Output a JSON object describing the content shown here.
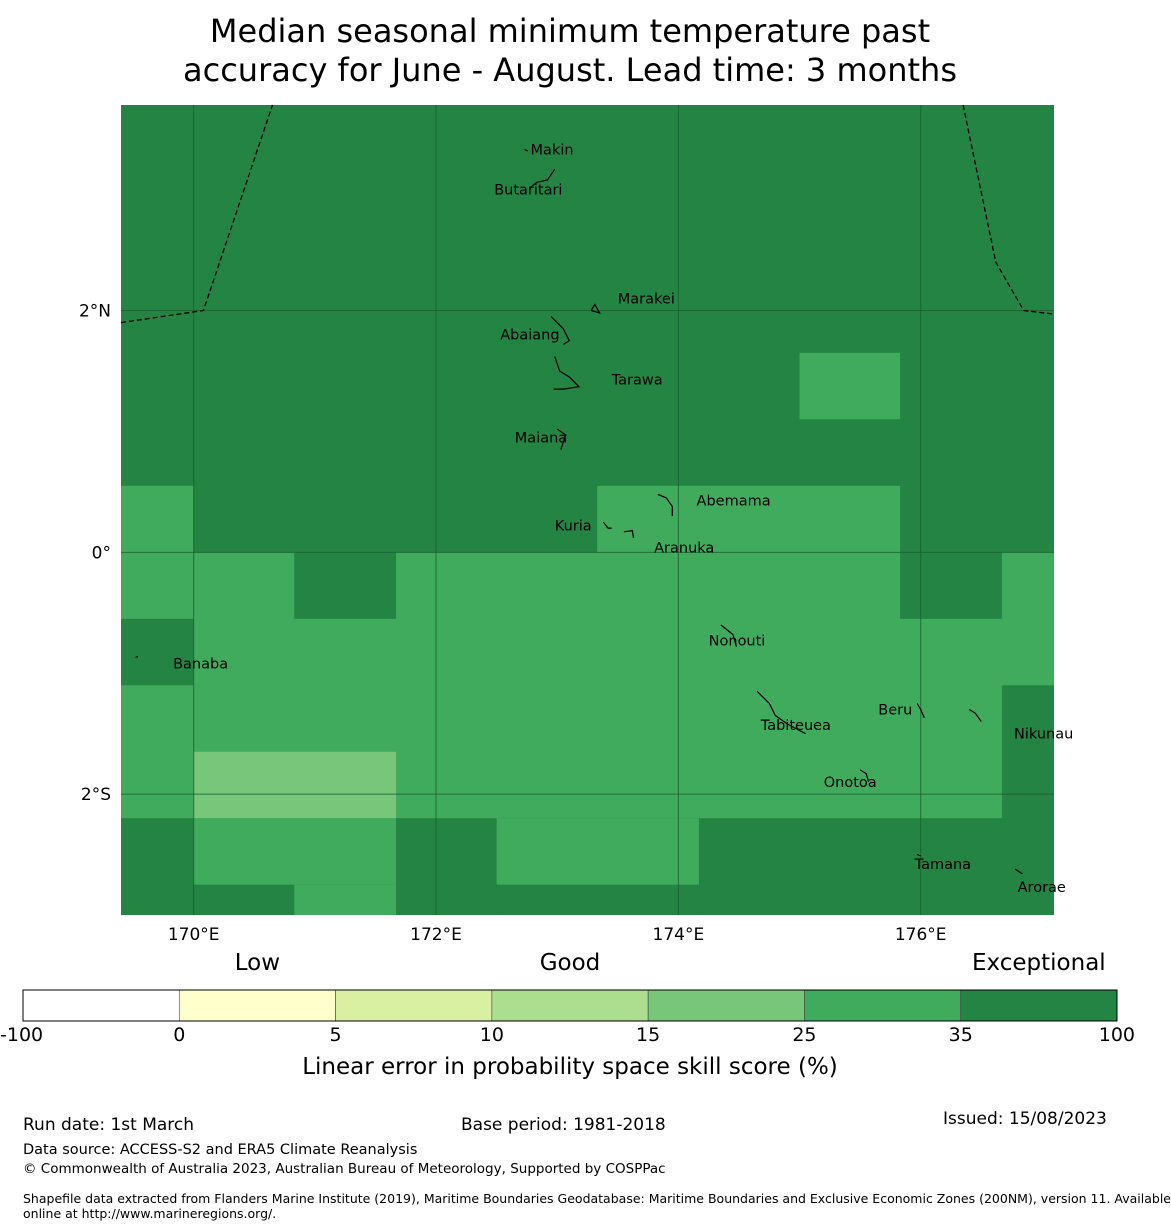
{
  "title": {
    "line1": "Median seasonal minimum temperature past",
    "line2": "accuracy for June - August. Lead time: 3 months"
  },
  "map": {
    "lon_range": [
      169.4,
      177.1
    ],
    "lat_range": [
      -3.0,
      3.7
    ],
    "lon_ticks": [
      {
        "value": 170,
        "label": "170°E"
      },
      {
        "value": 172,
        "label": "172°E"
      },
      {
        "value": 174,
        "label": "174°E"
      },
      {
        "value": 176,
        "label": "176°E"
      }
    ],
    "lat_ticks": [
      {
        "value": 2,
        "label": "2°N"
      },
      {
        "value": 0,
        "label": "0°"
      },
      {
        "value": -2,
        "label": "2°S"
      }
    ],
    "background_category": 6,
    "skill_cells": [
      {
        "lon": [
          169.4,
          170.0
        ],
        "lat": [
          0.0,
          0.55
        ],
        "category": 5
      },
      {
        "lon": [
          173.33,
          175.83
        ],
        "lat": [
          0.0,
          0.55
        ],
        "category": 5
      },
      {
        "lon": [
          175.0,
          175.83
        ],
        "lat": [
          1.1,
          1.65
        ],
        "category": 5
      },
      {
        "lon": [
          169.4,
          177.1
        ],
        "lat": [
          -2.2,
          0.0
        ],
        "category": 5
      },
      {
        "lon": [
          170.83,
          171.67
        ],
        "lat": [
          -0.55,
          0.0
        ],
        "category": 6
      },
      {
        "lon": [
          175.83,
          176.67
        ],
        "lat": [
          -0.55,
          0.0
        ],
        "category": 6
      },
      {
        "lon": [
          169.4,
          170.0
        ],
        "lat": [
          -1.1,
          -0.55
        ],
        "category": 6
      },
      {
        "lon": [
          176.67,
          177.1
        ],
        "lat": [
          -2.2,
          -1.1
        ],
        "category": 6
      },
      {
        "lon": [
          170.0,
          171.67
        ],
        "lat": [
          -2.2,
          -1.65
        ],
        "category": 4
      },
      {
        "lon": [
          169.4,
          170.0
        ],
        "lat": [
          -3.0,
          -2.2
        ],
        "category": 6
      },
      {
        "lon": [
          170.0,
          171.67
        ],
        "lat": [
          -2.75,
          -2.2
        ],
        "category": 5
      },
      {
        "lon": [
          170.0,
          170.83
        ],
        "lat": [
          -3.0,
          -2.75
        ],
        "category": 6
      },
      {
        "lon": [
          170.83,
          171.67
        ],
        "lat": [
          -3.0,
          -2.75
        ],
        "category": 5
      },
      {
        "lon": [
          171.67,
          172.5
        ],
        "lat": [
          -3.0,
          -2.2
        ],
        "category": 6
      },
      {
        "lon": [
          172.5,
          174.17
        ],
        "lat": [
          -2.75,
          -2.2
        ],
        "category": 5
      },
      {
        "lon": [
          172.5,
          174.17
        ],
        "lat": [
          -3.0,
          -2.75
        ],
        "category": 6
      },
      {
        "lon": [
          174.17,
          177.1
        ],
        "lat": [
          -3.0,
          -2.2
        ],
        "category": 6
      }
    ],
    "eez_boundaries": [
      [
        [
          169.4,
          1.9
        ],
        [
          170.08,
          2.0
        ],
        [
          170.65,
          3.7
        ]
      ],
      [
        [
          176.35,
          3.7
        ],
        [
          176.62,
          2.4
        ],
        [
          176.85,
          2.0
        ],
        [
          177.1,
          1.97
        ]
      ]
    ],
    "islands": [
      {
        "name": "Makin",
        "lon": 172.78,
        "lat": 3.32,
        "label_lon": 172.78,
        "label_lat": 3.33,
        "shape": [
          [
            172.73,
            3.33
          ],
          [
            172.76,
            3.32
          ]
        ]
      },
      {
        "name": "Butaritari",
        "lon": 172.9,
        "lat": 3.05,
        "label_lon": 172.48,
        "label_lat": 3.0,
        "shape": [
          [
            172.78,
            3.02
          ],
          [
            172.83,
            3.06
          ],
          [
            172.92,
            3.08
          ],
          [
            172.98,
            3.17
          ]
        ]
      },
      {
        "name": "Marakei",
        "lon": 173.33,
        "lat": 2.0,
        "label_lon": 173.5,
        "label_lat": 2.1,
        "shape": [
          [
            173.28,
            2.0
          ],
          [
            173.31,
            2.05
          ],
          [
            173.35,
            1.98
          ],
          [
            173.28,
            2.0
          ]
        ]
      },
      {
        "name": "Abaiang",
        "lon": 173.05,
        "lat": 1.8,
        "label_lon": 172.53,
        "label_lat": 1.8,
        "shape": [
          [
            172.95,
            1.95
          ],
          [
            173.05,
            1.85
          ],
          [
            173.1,
            1.75
          ],
          [
            173.05,
            1.72
          ]
        ]
      },
      {
        "name": "Tarawa",
        "lon": 173.1,
        "lat": 1.4,
        "label_lon": 173.45,
        "label_lat": 1.43,
        "shape": [
          [
            172.98,
            1.62
          ],
          [
            173.02,
            1.5
          ],
          [
            173.1,
            1.45
          ],
          [
            173.18,
            1.37
          ],
          [
            173.05,
            1.35
          ],
          [
            172.97,
            1.35
          ]
        ]
      },
      {
        "name": "Maiana",
        "lon": 173.05,
        "lat": 0.95,
        "label_lon": 172.65,
        "label_lat": 0.95,
        "shape": [
          [
            173.0,
            1.02
          ],
          [
            173.07,
            0.97
          ],
          [
            173.03,
            0.85
          ]
        ]
      },
      {
        "name": "Abemama",
        "lon": 173.9,
        "lat": 0.42,
        "label_lon": 174.15,
        "label_lat": 0.43,
        "shape": [
          [
            173.83,
            0.48
          ],
          [
            173.9,
            0.45
          ],
          [
            173.95,
            0.38
          ],
          [
            173.95,
            0.3
          ]
        ]
      },
      {
        "name": "Kuria",
        "lon": 173.4,
        "lat": 0.22,
        "label_lon": 172.98,
        "label_lat": 0.22,
        "shape": [
          [
            173.38,
            0.25
          ],
          [
            173.42,
            0.2
          ],
          [
            173.45,
            0.2
          ]
        ]
      },
      {
        "name": "Aranuka",
        "lon": 173.6,
        "lat": 0.16,
        "label_lon": 173.8,
        "label_lat": 0.04,
        "shape": [
          [
            173.55,
            0.17
          ],
          [
            173.62,
            0.18
          ],
          [
            173.63,
            0.12
          ]
        ]
      },
      {
        "name": "Nonouti",
        "lon": 174.4,
        "lat": -0.67,
        "label_lon": 174.25,
        "label_lat": -0.73,
        "shape": [
          [
            174.35,
            -0.6
          ],
          [
            174.45,
            -0.68
          ],
          [
            174.48,
            -0.78
          ]
        ]
      },
      {
        "name": "Banaba",
        "lon": 169.53,
        "lat": -0.86,
        "label_lon": 169.83,
        "label_lat": -0.92,
        "shape": [
          [
            169.52,
            -0.87
          ],
          [
            169.54,
            -0.86
          ]
        ]
      },
      {
        "name": "Tabiteuea",
        "lon": 174.8,
        "lat": -1.4,
        "label_lon": 174.68,
        "label_lat": -1.43,
        "shape": [
          [
            174.65,
            -1.15
          ],
          [
            174.75,
            -1.25
          ],
          [
            174.8,
            -1.35
          ],
          [
            174.9,
            -1.42
          ],
          [
            175.05,
            -1.5
          ]
        ]
      },
      {
        "name": "Beru",
        "lon": 176.0,
        "lat": -1.3,
        "label_lon": 175.65,
        "label_lat": -1.3,
        "shape": [
          [
            175.97,
            -1.25
          ],
          [
            176.0,
            -1.3
          ],
          [
            176.03,
            -1.37
          ]
        ]
      },
      {
        "name": "Nikunau",
        "lon": 176.45,
        "lat": -1.35,
        "label_lon": 176.77,
        "label_lat": -1.5,
        "shape": [
          [
            176.4,
            -1.3
          ],
          [
            176.45,
            -1.33
          ],
          [
            176.5,
            -1.4
          ]
        ]
      },
      {
        "name": "Onotoa",
        "lon": 175.55,
        "lat": -1.85,
        "label_lon": 175.2,
        "label_lat": -1.9,
        "shape": [
          [
            175.5,
            -1.8
          ],
          [
            175.55,
            -1.83
          ],
          [
            175.57,
            -1.9
          ]
        ]
      },
      {
        "name": "Tamana",
        "lon": 175.98,
        "lat": -2.5,
        "label_lon": 175.95,
        "label_lat": -2.58,
        "shape": [
          [
            175.97,
            -2.5
          ],
          [
            176.0,
            -2.51
          ]
        ]
      },
      {
        "name": "Arorae",
        "lon": 176.82,
        "lat": -2.63,
        "label_lon": 176.8,
        "label_lat": -2.77,
        "shape": [
          [
            176.78,
            -2.62
          ],
          [
            176.84,
            -2.66
          ]
        ]
      }
    ]
  },
  "colorbar": {
    "category_labels": [
      {
        "label": "Low",
        "at": 1.5
      },
      {
        "label": "Good",
        "at": 3.5
      },
      {
        "label": "Exceptional",
        "at": 6.5
      }
    ],
    "colors": [
      "#ffffff",
      "#ffffcc",
      "#d9f0a3",
      "#addd8e",
      "#78c679",
      "#41ab5d",
      "#238443"
    ],
    "tick_labels": [
      "-100",
      "0",
      "5",
      "10",
      "15",
      "25",
      "35",
      "100"
    ],
    "label": "Linear error in probability space skill score (%)"
  },
  "footer": {
    "run_date": "Run date: 1st March",
    "base_period": "Base period: 1981-2018",
    "issued": "Issued: 15/08/2023",
    "data_source": "Data source: ACCESS-S2 and ERA5 Climate Reanalysis",
    "copyright": "© Commonwealth of Australia 2023, Australian Bureau of Meteorology, Supported by COSPPac",
    "shapefile_line1": "Shapefile data extracted from Flanders Marine Institute (2019), Maritime Boundaries Geodatabase: Maritime Boundaries and Exclusive Economic Zones (200NM), version 11. Available",
    "shapefile_line2": "online at http://www.marineregions.org/."
  }
}
